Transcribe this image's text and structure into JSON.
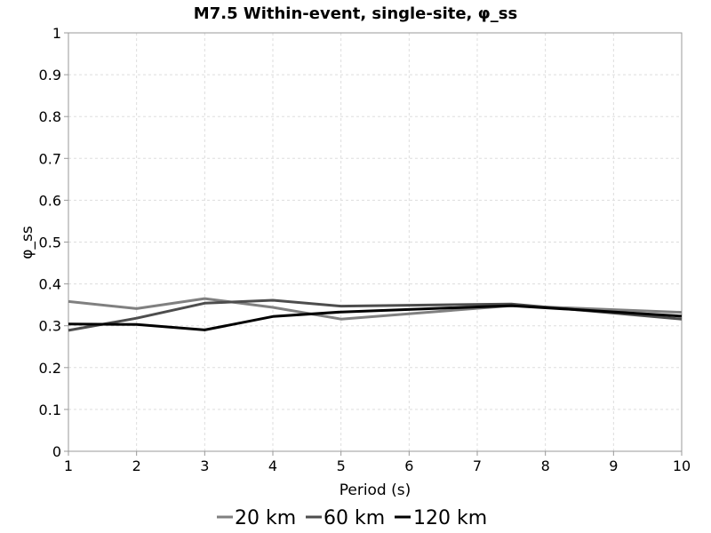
{
  "chart_data": {
    "type": "line",
    "title": "M7.5 Within-event, single-site, φ_ss",
    "xlabel": "Period (s)",
    "ylabel": "φ_ss",
    "xlim": [
      1,
      10
    ],
    "ylim": [
      0,
      1
    ],
    "xticks": [
      1,
      2,
      3,
      4,
      5,
      6,
      7,
      8,
      9,
      10
    ],
    "yticks": [
      0,
      0.1,
      0.2,
      0.3,
      0.4,
      0.5,
      0.6,
      0.7,
      0.8,
      0.9,
      1
    ],
    "grid": true,
    "legend_position": "bottom",
    "series": [
      {
        "name": "20 km",
        "color": "#808080",
        "x": [
          1,
          2,
          3,
          4,
          5,
          7.5,
          10
        ],
        "y": [
          0.358,
          0.341,
          0.365,
          0.344,
          0.316,
          0.348,
          0.332
        ]
      },
      {
        "name": "60 km",
        "color": "#4d4d4d",
        "x": [
          1,
          2,
          3,
          4,
          5,
          7.5,
          10
        ],
        "y": [
          0.289,
          0.318,
          0.354,
          0.361,
          0.347,
          0.352,
          0.316
        ]
      },
      {
        "name": "120 km",
        "color": "#000000",
        "x": [
          1,
          2,
          3,
          4,
          5,
          7.5,
          10
        ],
        "y": [
          0.304,
          0.303,
          0.29,
          0.322,
          0.333,
          0.348,
          0.323
        ]
      }
    ]
  }
}
